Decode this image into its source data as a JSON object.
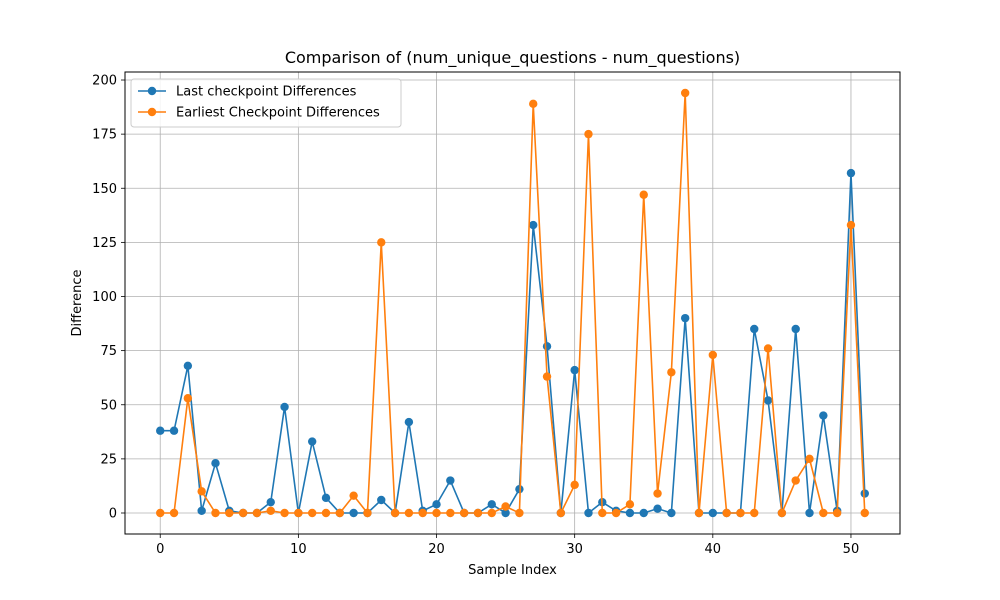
{
  "chart_data": {
    "type": "line",
    "title": "Comparison of (num_unique_questions - num_questions)",
    "xlabel": "Sample Index",
    "ylabel": "Difference",
    "xlim": [
      -2.55,
      53.55
    ],
    "ylim": [
      -9.7,
      203.7
    ],
    "xticks": [
      0,
      10,
      20,
      30,
      40,
      50
    ],
    "yticks": [
      0,
      25,
      50,
      75,
      100,
      125,
      150,
      175,
      200
    ],
    "grid": true,
    "legend_position": "upper-left",
    "series": [
      {
        "name": "Last checkpoint Differences",
        "color": "#1f77b4",
        "x": [
          0,
          1,
          2,
          3,
          4,
          5,
          6,
          7,
          8,
          9,
          10,
          11,
          12,
          13,
          14,
          15,
          16,
          17,
          18,
          19,
          20,
          21,
          22,
          23,
          24,
          25,
          26,
          27,
          28,
          29,
          30,
          31,
          32,
          33,
          34,
          35,
          36,
          37,
          38,
          39,
          40,
          41,
          42,
          43,
          44,
          45,
          46,
          47,
          48,
          49,
          50,
          51
        ],
        "y": [
          38,
          38,
          68,
          1,
          23,
          1,
          0,
          0,
          5,
          49,
          0,
          33,
          7,
          0,
          0,
          0,
          6,
          0,
          42,
          1,
          4,
          15,
          0,
          0,
          4,
          0,
          11,
          133,
          77,
          0,
          66,
          0,
          5,
          1,
          0,
          0,
          2,
          0,
          90,
          0,
          0,
          0,
          0,
          85,
          52,
          0,
          85,
          0,
          45,
          1,
          157,
          9
        ]
      },
      {
        "name": "Earliest Checkpoint Differences",
        "color": "#ff7f0e",
        "x": [
          0,
          1,
          2,
          3,
          4,
          5,
          6,
          7,
          8,
          9,
          10,
          11,
          12,
          13,
          14,
          15,
          16,
          17,
          18,
          19,
          20,
          21,
          22,
          23,
          24,
          25,
          26,
          27,
          28,
          29,
          30,
          31,
          32,
          33,
          34,
          35,
          36,
          37,
          38,
          39,
          40,
          41,
          42,
          43,
          44,
          45,
          46,
          47,
          48,
          49,
          50,
          51
        ],
        "y": [
          0,
          0,
          53,
          10,
          0,
          0,
          0,
          0,
          1,
          0,
          0,
          0,
          0,
          0,
          8,
          0,
          125,
          0,
          0,
          0,
          0,
          0,
          0,
          0,
          0,
          3,
          0,
          189,
          63,
          0,
          13,
          175,
          0,
          0,
          4,
          147,
          9,
          65,
          194,
          0,
          73,
          0,
          0,
          0,
          76,
          0,
          15,
          25,
          0,
          0,
          133,
          0
        ]
      }
    ]
  }
}
